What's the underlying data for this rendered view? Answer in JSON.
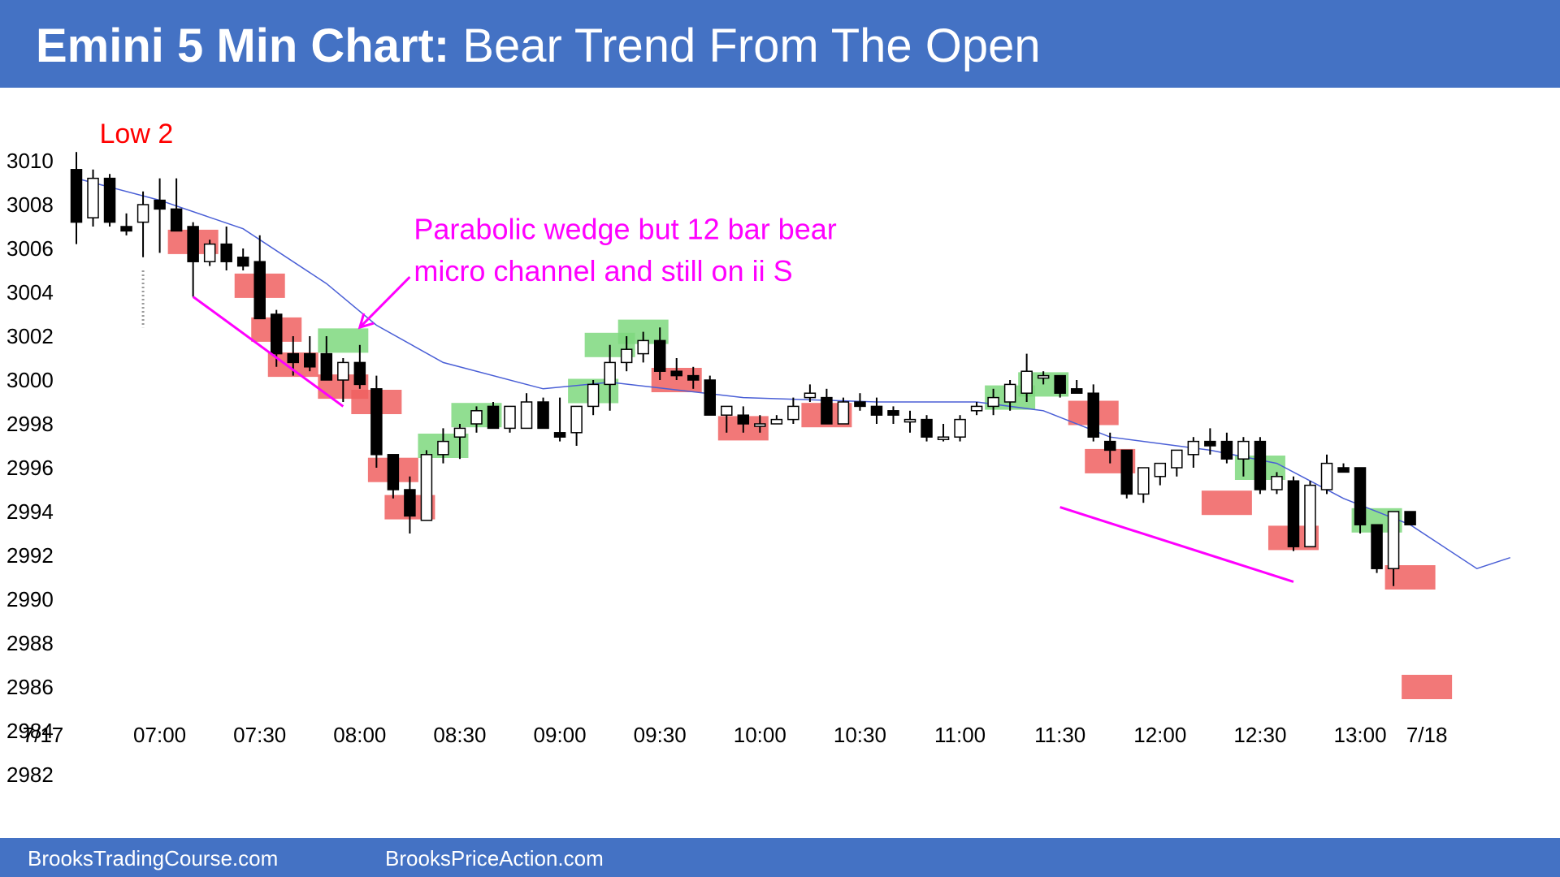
{
  "header": {
    "title_bold": "Emini 5 Min Chart:",
    "title_rest": "Bear Trend From The Open",
    "background": "#4472c4"
  },
  "footer": {
    "left": "BrooksTradingCourse.com",
    "right": "BrooksPriceAction.com"
  },
  "chart_data": {
    "type": "candlestick",
    "title": "Emini 5 Min Chart: Bear Trend From The Open",
    "ylim": [
      2981,
      3011
    ],
    "y_ticks": [
      2982,
      2984,
      2986,
      2988,
      2990,
      2992,
      2994,
      2996,
      2998,
      3000,
      3002,
      3004,
      3006,
      3008,
      3010
    ],
    "x_ticks": [
      "7/17",
      "07:00",
      "07:30",
      "08:00",
      "08:30",
      "09:00",
      "09:30",
      "10:00",
      "10:30",
      "11:00",
      "11:30",
      "12:00",
      "12:30",
      "13:00",
      "7/18"
    ],
    "x_tick_bars": [
      -2,
      5,
      11,
      17,
      23,
      29,
      35,
      41,
      47,
      53,
      59,
      65,
      71,
      77,
      81
    ],
    "grid": false,
    "colors": {
      "bull_body": "#ffffff",
      "bear_body": "#000000",
      "ema": "#4a5fd6",
      "bull_highlight": "#7ed87e",
      "bear_highlight": "#f06060",
      "annotation": "#ff00ff",
      "low2": "#ff0000"
    },
    "bars": [
      {
        "o": 3009.6,
        "h": 3010.4,
        "l": 3006.2,
        "c": 3007.2
      },
      {
        "o": 3007.4,
        "h": 3009.6,
        "l": 3007.0,
        "c": 3009.2
      },
      {
        "o": 3009.2,
        "h": 3009.4,
        "l": 3007.0,
        "c": 3007.2
      },
      {
        "o": 3007.0,
        "h": 3007.6,
        "l": 3006.6,
        "c": 3006.8
      },
      {
        "o": 3007.2,
        "h": 3008.6,
        "l": 3005.6,
        "c": 3008.0
      },
      {
        "o": 3008.2,
        "h": 3009.2,
        "l": 3005.8,
        "c": 3007.8
      },
      {
        "o": 3007.8,
        "h": 3009.2,
        "l": 3006.8,
        "c": 3006.8
      },
      {
        "o": 3007.0,
        "h": 3007.2,
        "l": 3003.8,
        "c": 3005.4
      },
      {
        "o": 3005.4,
        "h": 3006.4,
        "l": 3005.2,
        "c": 3006.2
      },
      {
        "o": 3006.2,
        "h": 3007.0,
        "l": 3005.0,
        "c": 3005.4
      },
      {
        "o": 3005.6,
        "h": 3006.0,
        "l": 3005.0,
        "c": 3005.2
      },
      {
        "o": 3005.4,
        "h": 3006.6,
        "l": 3002.8,
        "c": 3002.8
      },
      {
        "o": 3003.0,
        "h": 3003.2,
        "l": 3000.6,
        "c": 3001.2
      },
      {
        "o": 3001.2,
        "h": 3002.0,
        "l": 3000.2,
        "c": 3000.8
      },
      {
        "o": 3001.2,
        "h": 3002.0,
        "l": 3000.4,
        "c": 3000.6
      },
      {
        "o": 3001.2,
        "h": 3002.0,
        "l": 3000.2,
        "c": 3000.0
      },
      {
        "o": 3000.0,
        "h": 3001.0,
        "l": 2999.0,
        "c": 3000.8
      },
      {
        "o": 3000.8,
        "h": 3001.6,
        "l": 2999.6,
        "c": 2999.8
      },
      {
        "o": 2999.6,
        "h": 3000.2,
        "l": 2996.0,
        "c": 2996.6
      },
      {
        "o": 2996.6,
        "h": 2996.6,
        "l": 2994.6,
        "c": 2995.0
      },
      {
        "o": 2995.0,
        "h": 2995.6,
        "l": 2993.0,
        "c": 2993.8
      },
      {
        "o": 2993.6,
        "h": 2996.8,
        "l": 2993.6,
        "c": 2996.6
      },
      {
        "o": 2996.6,
        "h": 2997.8,
        "l": 2996.2,
        "c": 2997.2
      },
      {
        "o": 2997.4,
        "h": 2998.0,
        "l": 2996.4,
        "c": 2997.8
      },
      {
        "o": 2998.0,
        "h": 2998.8,
        "l": 2997.6,
        "c": 2998.6
      },
      {
        "o": 2998.8,
        "h": 2999.0,
        "l": 2997.8,
        "c": 2997.8
      },
      {
        "o": 2997.8,
        "h": 2998.8,
        "l": 2997.6,
        "c": 2998.8
      },
      {
        "o": 2997.8,
        "h": 2999.4,
        "l": 2997.8,
        "c": 2999.0
      },
      {
        "o": 2999.0,
        "h": 2999.2,
        "l": 2997.8,
        "c": 2997.8
      },
      {
        "o": 2997.6,
        "h": 2999.2,
        "l": 2997.2,
        "c": 2997.4
      },
      {
        "o": 2997.6,
        "h": 2998.8,
        "l": 2997.0,
        "c": 2998.8
      },
      {
        "o": 2998.8,
        "h": 3000.0,
        "l": 2998.4,
        "c": 2999.8
      },
      {
        "o": 2999.8,
        "h": 3001.6,
        "l": 2998.6,
        "c": 3000.8
      },
      {
        "o": 3000.8,
        "h": 3002.0,
        "l": 3000.4,
        "c": 3001.4
      },
      {
        "o": 3001.2,
        "h": 3002.2,
        "l": 3000.8,
        "c": 3001.8
      },
      {
        "o": 3001.8,
        "h": 3002.4,
        "l": 3000.0,
        "c": 3000.4
      },
      {
        "o": 3000.4,
        "h": 3001.0,
        "l": 3000.0,
        "c": 3000.2
      },
      {
        "o": 3000.2,
        "h": 3000.6,
        "l": 2999.6,
        "c": 3000.0
      },
      {
        "o": 3000.0,
        "h": 3000.2,
        "l": 2998.4,
        "c": 2998.4
      },
      {
        "o": 2998.4,
        "h": 2998.8,
        "l": 2997.6,
        "c": 2998.8
      },
      {
        "o": 2998.4,
        "h": 2998.8,
        "l": 2997.6,
        "c": 2998.0
      },
      {
        "o": 2998.0,
        "h": 2998.4,
        "l": 2997.6,
        "c": 2998.0
      },
      {
        "o": 2998.0,
        "h": 2998.4,
        "l": 2998.0,
        "c": 2998.2
      },
      {
        "o": 2998.2,
        "h": 2999.2,
        "l": 2998.0,
        "c": 2998.8
      },
      {
        "o": 2999.2,
        "h": 2999.8,
        "l": 2999.0,
        "c": 2999.4
      },
      {
        "o": 2999.2,
        "h": 2999.6,
        "l": 2998.0,
        "c": 2998.0
      },
      {
        "o": 2998.0,
        "h": 2999.2,
        "l": 2998.0,
        "c": 2999.0
      },
      {
        "o": 2999.0,
        "h": 2999.4,
        "l": 2998.6,
        "c": 2998.8
      },
      {
        "o": 2998.8,
        "h": 2999.2,
        "l": 2998.0,
        "c": 2998.4
      },
      {
        "o": 2998.6,
        "h": 2998.8,
        "l": 2998.0,
        "c": 2998.4
      },
      {
        "o": 2998.2,
        "h": 2998.6,
        "l": 2997.6,
        "c": 2998.2
      },
      {
        "o": 2998.2,
        "h": 2998.4,
        "l": 2997.2,
        "c": 2997.4
      },
      {
        "o": 2997.4,
        "h": 2998.0,
        "l": 2997.2,
        "c": 2997.4
      },
      {
        "o": 2997.4,
        "h": 2998.4,
        "l": 2997.2,
        "c": 2998.2
      },
      {
        "o": 2998.6,
        "h": 2999.0,
        "l": 2998.4,
        "c": 2998.8
      },
      {
        "o": 2998.8,
        "h": 2999.6,
        "l": 2998.4,
        "c": 2999.2
      },
      {
        "o": 2999.0,
        "h": 3000.0,
        "l": 2998.6,
        "c": 2999.8
      },
      {
        "o": 2999.4,
        "h": 3001.2,
        "l": 2999.0,
        "c": 3000.4
      },
      {
        "o": 3000.2,
        "h": 3000.4,
        "l": 2999.8,
        "c": 3000.2
      },
      {
        "o": 3000.2,
        "h": 3000.2,
        "l": 2999.2,
        "c": 2999.4
      },
      {
        "o": 2999.6,
        "h": 3000.0,
        "l": 2999.4,
        "c": 2999.4
      },
      {
        "o": 2999.4,
        "h": 2999.8,
        "l": 2997.2,
        "c": 2997.4
      },
      {
        "o": 2997.2,
        "h": 2997.6,
        "l": 2996.2,
        "c": 2996.8
      },
      {
        "o": 2996.8,
        "h": 2996.8,
        "l": 2994.6,
        "c": 2994.8
      },
      {
        "o": 2994.8,
        "h": 2996.0,
        "l": 2994.4,
        "c": 2996.0
      },
      {
        "o": 2995.6,
        "h": 2996.2,
        "l": 2995.2,
        "c": 2996.2
      },
      {
        "o": 2996.0,
        "h": 2996.8,
        "l": 2995.6,
        "c": 2996.8
      },
      {
        "o": 2996.6,
        "h": 2997.4,
        "l": 2996.0,
        "c": 2997.2
      },
      {
        "o": 2997.2,
        "h": 2997.8,
        "l": 2996.6,
        "c": 2997.0
      },
      {
        "o": 2997.2,
        "h": 2997.6,
        "l": 2996.2,
        "c": 2996.4
      },
      {
        "o": 2996.4,
        "h": 2997.4,
        "l": 2995.6,
        "c": 2997.2
      },
      {
        "o": 2997.2,
        "h": 2997.4,
        "l": 2994.8,
        "c": 2995.0
      },
      {
        "o": 2995.0,
        "h": 2995.8,
        "l": 2994.8,
        "c": 2995.6
      },
      {
        "o": 2995.4,
        "h": 2995.6,
        "l": 2992.2,
        "c": 2992.4
      },
      {
        "o": 2992.4,
        "h": 2995.4,
        "l": 2992.4,
        "c": 2995.2
      },
      {
        "o": 2995.0,
        "h": 2996.6,
        "l": 2994.8,
        "c": 2996.2
      },
      {
        "o": 2996.0,
        "h": 2996.2,
        "l": 2995.8,
        "c": 2995.8
      },
      {
        "o": 2996.0,
        "h": 2996.0,
        "l": 2993.0,
        "c": 2993.4
      },
      {
        "o": 2993.4,
        "h": 2993.4,
        "l": 2991.2,
        "c": 2991.4
      },
      {
        "o": 2991.4,
        "h": 2994.0,
        "l": 2990.6,
        "c": 2994.0
      },
      {
        "o": 2994.0,
        "h": 2994.0,
        "l": 2993.4,
        "c": 2993.4
      }
    ],
    "ema": [
      [
        0,
        3009.2
      ],
      [
        5,
        3008.2
      ],
      [
        10,
        3006.9
      ],
      [
        15,
        3004.4
      ],
      [
        18,
        3002.5
      ],
      [
        22,
        3000.8
      ],
      [
        28,
        2999.6
      ],
      [
        32,
        2999.9
      ],
      [
        40,
        2999.2
      ],
      [
        48,
        2999.0
      ],
      [
        54,
        2999.0
      ],
      [
        58,
        2998.6
      ],
      [
        62,
        2997.4
      ],
      [
        68,
        2996.8
      ],
      [
        72,
        2996.2
      ],
      [
        76,
        2994.6
      ],
      [
        80,
        2993.4
      ],
      [
        84,
        2991.4
      ],
      [
        86,
        2991.9
      ]
    ],
    "highlights": [
      {
        "bar": 7,
        "y": 3006.3,
        "color": "bear",
        "w": 2
      },
      {
        "bar": 11,
        "y": 3004.3,
        "color": "bear",
        "w": 2
      },
      {
        "bar": 12,
        "y": 3002.3,
        "color": "bear",
        "w": 2
      },
      {
        "bar": 13,
        "y": 3000.7,
        "color": "bear",
        "w": 2
      },
      {
        "bar": 16,
        "y": 2999.7,
        "color": "bear",
        "w": 2
      },
      {
        "bar": 16,
        "y": 3001.8,
        "color": "bull",
        "w": 2
      },
      {
        "bar": 18,
        "y": 2999.0,
        "color": "bear",
        "w": 2
      },
      {
        "bar": 19,
        "y": 2995.9,
        "color": "bear",
        "w": 2
      },
      {
        "bar": 20,
        "y": 2994.2,
        "color": "bear",
        "w": 2
      },
      {
        "bar": 22,
        "y": 2997.0,
        "color": "bull",
        "w": 2
      },
      {
        "bar": 24,
        "y": 2998.4,
        "color": "bull",
        "w": 2
      },
      {
        "bar": 31,
        "y": 2999.5,
        "color": "bull",
        "w": 2
      },
      {
        "bar": 32,
        "y": 3001.6,
        "color": "bull",
        "w": 2
      },
      {
        "bar": 34,
        "y": 3002.2,
        "color": "bull",
        "w": 2
      },
      {
        "bar": 36,
        "y": 3000.0,
        "color": "bear",
        "w": 2
      },
      {
        "bar": 40,
        "y": 2997.8,
        "color": "bear",
        "w": 2
      },
      {
        "bar": 45,
        "y": 2998.4,
        "color": "bear",
        "w": 3
      },
      {
        "bar": 56,
        "y": 2999.2,
        "color": "bull",
        "w": 3
      },
      {
        "bar": 58,
        "y": 2999.8,
        "color": "bull",
        "w": 2
      },
      {
        "bar": 61,
        "y": 2998.5,
        "color": "bear",
        "w": 2
      },
      {
        "bar": 62,
        "y": 2996.3,
        "color": "bear",
        "w": 2
      },
      {
        "bar": 69,
        "y": 2994.4,
        "color": "bear",
        "w": 2
      },
      {
        "bar": 71,
        "y": 2996.0,
        "color": "bull",
        "w": 2
      },
      {
        "bar": 73,
        "y": 2992.8,
        "color": "bear",
        "w": 2
      },
      {
        "bar": 78,
        "y": 2993.6,
        "color": "bull",
        "w": 2
      },
      {
        "bar": 80,
        "y": 2991.0,
        "color": "bear",
        "w": 2
      },
      {
        "bar": 81,
        "y": 2986.0,
        "color": "bear",
        "w": 2
      }
    ],
    "trendlines": [
      [
        [
          7,
          3003.8
        ],
        [
          16,
          2998.8
        ]
      ],
      [
        [
          59,
          2994.2
        ],
        [
          73,
          2990.8
        ]
      ]
    ],
    "annotations": [
      {
        "text": "Low 2",
        "bar": 1,
        "y": 3011.3,
        "color": "low2"
      },
      {
        "text": "Parabolic wedge but 12 bar bear",
        "bar": 20,
        "y": 3006.9,
        "color": "annotation"
      },
      {
        "text": "micro channel and still on ii S",
        "bar": 20,
        "y": 3005.0,
        "color": "annotation"
      }
    ],
    "arrow": {
      "from": [
        20,
        3004.7
      ],
      "to": [
        17,
        3002.4
      ]
    },
    "dotted_marker": {
      "bar": 4,
      "from": 3005.0,
      "to": 3002.4
    }
  }
}
